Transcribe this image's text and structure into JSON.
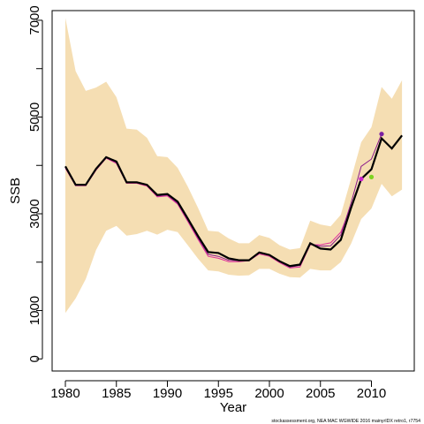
{
  "chart_data": {
    "type": "line",
    "title": "",
    "xlabel": "Year",
    "ylabel": "SSB",
    "xlim": [
      1978.7,
      2014.2
    ],
    "ylim": [
      -250,
      7200
    ],
    "x_ticks": [
      1980,
      1985,
      1990,
      1995,
      2000,
      2005,
      2010
    ],
    "y_ticks": [
      0,
      1000,
      3000,
      5000,
      7000
    ],
    "y_minor_ticks": [
      2000,
      4000,
      6000
    ],
    "grid": false,
    "legend": "none",
    "footnote": "stockassessment.org, NEA MAC WGWIDE 2016 mainyrIDX retro1, r7754",
    "colors": {
      "band": "#f5deb3",
      "main": "#000000",
      "peel1": "#e0309a",
      "peel2": "#8b1a8b",
      "end1": "#cc22cc",
      "end2": "#7b1fa2",
      "end3": "#7ed321"
    },
    "band": {
      "x": [
        1980,
        1981,
        1982,
        1983,
        1984,
        1985,
        1986,
        1987,
        1988,
        1989,
        1990,
        1991,
        1992,
        1993,
        1994,
        1995,
        1996,
        1997,
        1998,
        1999,
        2000,
        2001,
        2002,
        2003,
        2004,
        2005,
        2006,
        2007,
        2008,
        2009,
        2010,
        2011,
        2012,
        2013
      ],
      "lower": [
        950,
        1250,
        1650,
        2250,
        2650,
        2750,
        2550,
        2580,
        2650,
        2570,
        2670,
        2620,
        2350,
        2070,
        1830,
        1810,
        1740,
        1720,
        1730,
        1860,
        1860,
        1760,
        1690,
        1680,
        1860,
        1830,
        1830,
        2000,
        2380,
        2890,
        3110,
        3620,
        3360,
        3500
      ],
      "upper": [
        7050,
        5950,
        5540,
        5610,
        5730,
        5410,
        4760,
        4740,
        4570,
        4190,
        4170,
        3950,
        3560,
        3120,
        2650,
        2630,
        2490,
        2390,
        2390,
        2560,
        2500,
        2350,
        2260,
        2290,
        2860,
        2780,
        2740,
        2980,
        3720,
        4480,
        4790,
        5620,
        5380,
        5760
      ]
    },
    "series": [
      {
        "x": [
          1980,
          1981,
          1982,
          1983,
          1984,
          1985,
          1986,
          1987,
          1988,
          1989,
          1990,
          1991,
          1992,
          1993,
          1994,
          1995,
          1996,
          1997,
          1998,
          1999,
          2000,
          2001,
          2002,
          2003,
          2004,
          2005,
          2006,
          2007,
          2008,
          2009,
          2010,
          2011,
          2012,
          2013
        ],
        "values": [
          3980,
          3600,
          3600,
          3930,
          4170,
          4080,
          3650,
          3650,
          3600,
          3390,
          3410,
          3250,
          2900,
          2540,
          2210,
          2190,
          2080,
          2040,
          2040,
          2200,
          2150,
          2020,
          1920,
          1950,
          2390,
          2280,
          2260,
          2460,
          3120,
          3720,
          3920,
          4560,
          4350,
          4620
        ]
      },
      {
        "x": [
          1980,
          1981,
          1982,
          1983,
          1984,
          1985,
          1986,
          1987,
          1988,
          1989,
          1990,
          1991,
          1992,
          1993,
          1994,
          1995,
          1996,
          1997,
          1998,
          1999,
          2000,
          2001,
          2002,
          2003,
          2004,
          2005,
          2006,
          2007,
          2008,
          2009
        ],
        "values": [
          3940,
          3580,
          3580,
          3900,
          4150,
          4040,
          3630,
          3630,
          3570,
          3350,
          3370,
          3200,
          2840,
          2470,
          2120,
          2080,
          2010,
          2010,
          2030,
          2170,
          2120,
          1990,
          1880,
          1900,
          2360,
          2360,
          2400,
          2620,
          3150,
          3720
        ]
      },
      {
        "x": [
          1980,
          1981,
          1982,
          1983,
          1984,
          1985,
          1986,
          1987,
          1988,
          1989,
          1990,
          1991,
          1992,
          1993,
          1994,
          1995,
          1996,
          1997,
          1998,
          1999,
          2000,
          2001,
          2002,
          2003,
          2004,
          2005,
          2006,
          2007,
          2008,
          2009,
          2010,
          2011
        ],
        "values": [
          3960,
          3590,
          3590,
          3920,
          4160,
          4060,
          3640,
          3640,
          3590,
          3370,
          3390,
          3220,
          2870,
          2500,
          2160,
          2120,
          2040,
          2030,
          2040,
          2190,
          2140,
          2010,
          1900,
          1930,
          2380,
          2330,
          2340,
          2560,
          3220,
          3980,
          4130,
          4650
        ]
      },
      {
        "x": [
          2010
        ],
        "values": [
          3760
        ]
      }
    ]
  }
}
